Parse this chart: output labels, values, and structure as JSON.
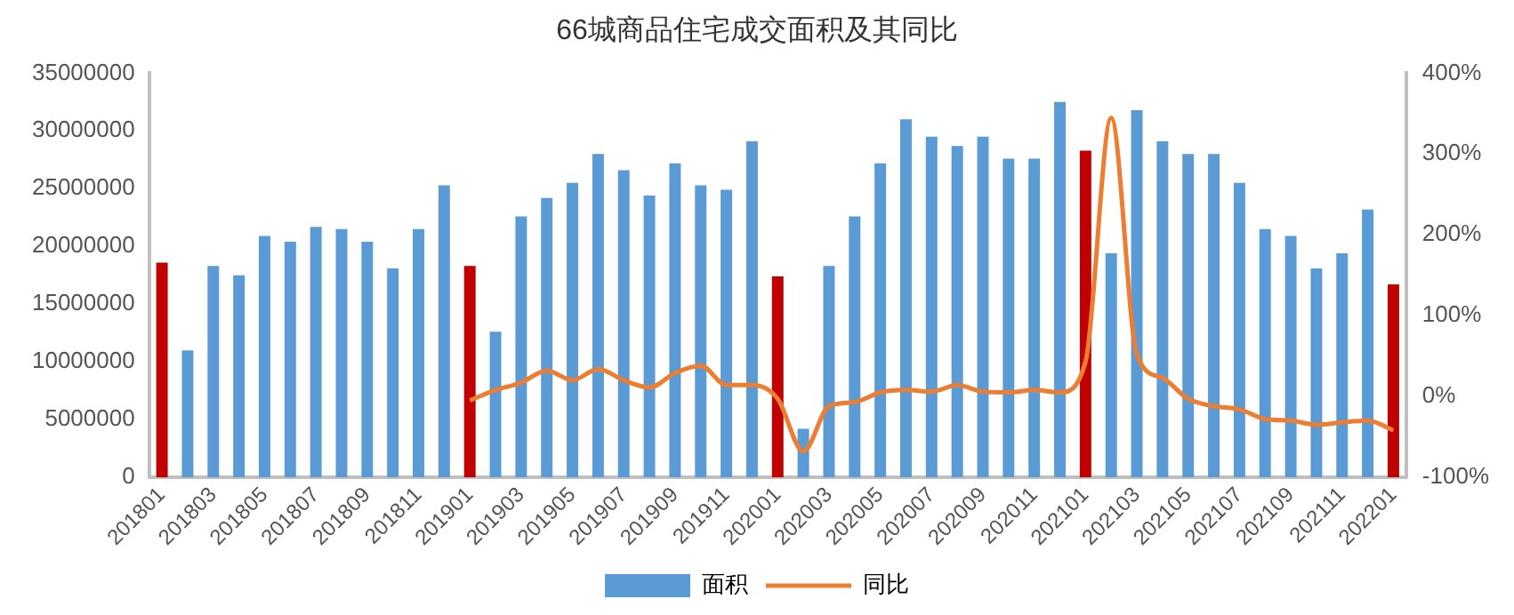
{
  "chart_data": {
    "type": "bar",
    "title": "66城商品住宅成交面积及其同比",
    "categories": [
      "201801",
      null,
      "201803",
      null,
      "201805",
      null,
      "201807",
      null,
      "201809",
      null,
      "201811",
      null,
      "201901",
      null,
      "201903",
      null,
      "201905",
      null,
      "201907",
      null,
      "201909",
      null,
      "201911",
      null,
      "202001",
      null,
      "202003",
      null,
      "202005",
      null,
      "202007",
      null,
      "202009",
      null,
      "202011",
      null,
      "202101",
      null,
      "202103",
      null,
      "202105",
      null,
      "202107",
      null,
      "202109",
      null,
      "202111",
      null,
      "202201"
    ],
    "series": [
      {
        "name": "面积",
        "color": "#5b9bd5",
        "colors": [
          "#c00000",
          "#5b9bd5",
          "#5b9bd5",
          "#5b9bd5",
          "#5b9bd5",
          "#5b9bd5",
          "#5b9bd5",
          "#5b9bd5",
          "#5b9bd5",
          "#5b9bd5",
          "#5b9bd5",
          "#5b9bd5",
          "#c00000",
          "#5b9bd5",
          "#5b9bd5",
          "#5b9bd5",
          "#5b9bd5",
          "#5b9bd5",
          "#5b9bd5",
          "#5b9bd5",
          "#5b9bd5",
          "#5b9bd5",
          "#5b9bd5",
          "#5b9bd5",
          "#c00000",
          "#5b9bd5",
          "#5b9bd5",
          "#5b9bd5",
          "#5b9bd5",
          "#5b9bd5",
          "#5b9bd5",
          "#5b9bd5",
          "#5b9bd5",
          "#5b9bd5",
          "#5b9bd5",
          "#5b9bd5",
          "#c00000",
          "#5b9bd5",
          "#5b9bd5",
          "#5b9bd5",
          "#5b9bd5",
          "#5b9bd5",
          "#5b9bd5",
          "#5b9bd5",
          "#5b9bd5",
          "#5b9bd5",
          "#5b9bd5",
          "#5b9bd5",
          "#c00000"
        ],
        "values": [
          18600000,
          11000000,
          18300000,
          17500000,
          20900000,
          20400000,
          21700000,
          21500000,
          20400000,
          18100000,
          21500000,
          25300000,
          18300000,
          12600000,
          22600000,
          24200000,
          25500000,
          28000000,
          26600000,
          24400000,
          27200000,
          25300000,
          24900000,
          29100000,
          17400000,
          4200000,
          18300000,
          22600000,
          27200000,
          31000000,
          29500000,
          28700000,
          29500000,
          27600000,
          27600000,
          32500000,
          28300000,
          19400000,
          31800000,
          29100000,
          28000000,
          28000000,
          25500000,
          21500000,
          20900000,
          18100000,
          19400000,
          23200000,
          16700000
        ]
      },
      {
        "name": "同比",
        "type": "line",
        "axis": "y2",
        "color": "#ed7d31",
        "values": [
          null,
          null,
          null,
          null,
          null,
          null,
          null,
          null,
          null,
          null,
          null,
          null,
          -5,
          8,
          17,
          32,
          20,
          34,
          20,
          11,
          29,
          38,
          14,
          14,
          -3,
          -68,
          -12,
          -7,
          5,
          8,
          6,
          14,
          6,
          5,
          8,
          5,
          43,
          345,
          52,
          23,
          -3,
          -12,
          -16,
          -28,
          -30,
          -35,
          -32,
          -30,
          -42
        ]
      }
    ],
    "ylim": [
      0,
      35000000
    ],
    "yticks": [
      0,
      5000000,
      10000000,
      15000000,
      20000000,
      25000000,
      30000000,
      35000000
    ],
    "y2lim": [
      -100,
      400
    ],
    "y2ticks": [
      {
        "value": -100,
        "label": "-100%"
      },
      {
        "value": 0,
        "label": "0%"
      },
      {
        "value": 100,
        "label": "100%"
      },
      {
        "value": 200,
        "label": "200%"
      },
      {
        "value": 300,
        "label": "300%"
      },
      {
        "value": 400,
        "label": "400%"
      }
    ],
    "grid": false,
    "legend": "bottom",
    "marker": "none"
  }
}
